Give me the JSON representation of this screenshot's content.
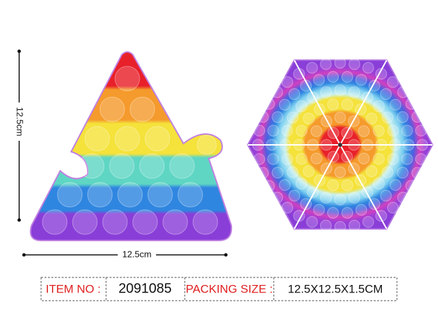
{
  "dimensions": {
    "height_label": "12.5cm",
    "width_label": "12.5cm"
  },
  "info_table": {
    "item_no_label": "ITEM NO :",
    "item_no": "2091085",
    "packing_size_label": "PACKING SIZE :",
    "packing_size": "12.5X12.5X1.5CM"
  }
}
